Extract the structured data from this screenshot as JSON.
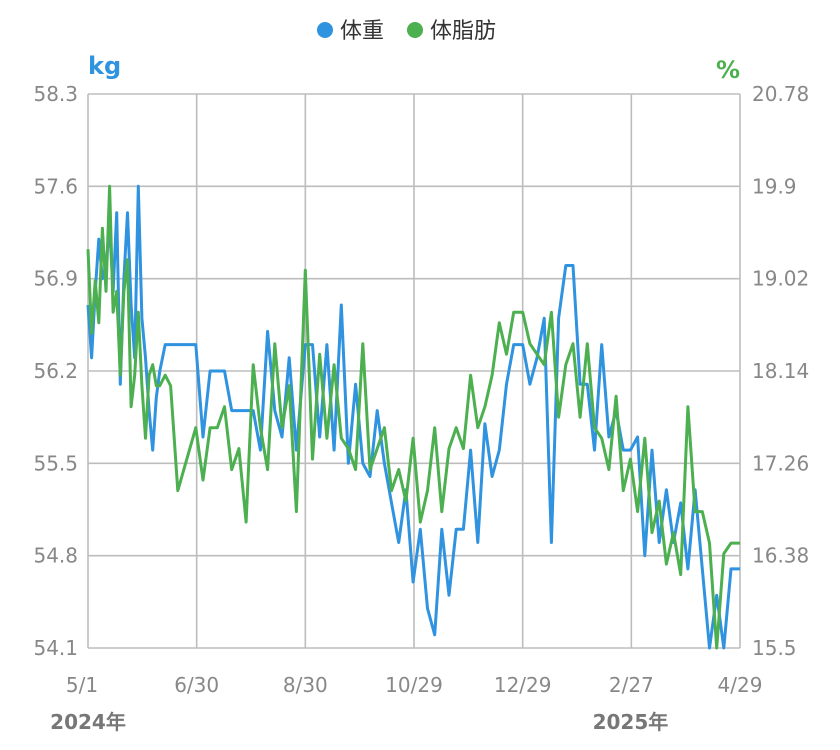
{
  "chart_data": {
    "type": "line",
    "legend": {
      "position": "top-center"
    },
    "grid": true,
    "x_axis": {
      "ticks": [
        "5/1",
        "6/30",
        "8/30",
        "10/29",
        "12/29",
        "2/27",
        "4/29"
      ],
      "years": [
        {
          "label": "2024年",
          "date": "2024-05-01"
        },
        {
          "label": "2025年",
          "date": "2025-02-27"
        }
      ],
      "range": [
        "2024-05-01",
        "2025-04-29"
      ]
    },
    "y_left": {
      "unit": "kg",
      "color": "#2f93e0",
      "ticks": [
        "58.3",
        "57.6",
        "56.9",
        "56.2",
        "55.5",
        "54.8",
        "54.1"
      ],
      "range": [
        54.1,
        58.3
      ]
    },
    "y_right": {
      "unit": "%",
      "color": "#4caf50",
      "ticks": [
        "20.78",
        "19.9",
        "19.02",
        "18.14",
        "17.26",
        "16.38",
        "15.5"
      ],
      "range": [
        15.5,
        20.78
      ]
    },
    "series": [
      {
        "name": "体重",
        "axis": "left",
        "color": "#2f93e0",
        "x": [
          "2024-05-01",
          "2024-05-03",
          "2024-05-05",
          "2024-05-07",
          "2024-05-09",
          "2024-05-11",
          "2024-05-13",
          "2024-05-15",
          "2024-05-17",
          "2024-05-19",
          "2024-05-21",
          "2024-05-23",
          "2024-05-25",
          "2024-05-27",
          "2024-05-29",
          "2024-05-31",
          "2024-06-02",
          "2024-06-04",
          "2024-06-06",
          "2024-06-08",
          "2024-06-10",
          "2024-06-13",
          "2024-06-16",
          "2024-06-20",
          "2024-06-25",
          "2024-06-30",
          "2024-07-04",
          "2024-07-08",
          "2024-07-12",
          "2024-07-16",
          "2024-07-20",
          "2024-07-24",
          "2024-07-28",
          "2024-08-01",
          "2024-08-05",
          "2024-08-09",
          "2024-08-13",
          "2024-08-17",
          "2024-08-21",
          "2024-08-25",
          "2024-08-30",
          "2024-09-03",
          "2024-09-07",
          "2024-09-11",
          "2024-09-15",
          "2024-09-19",
          "2024-09-23",
          "2024-09-27",
          "2024-10-01",
          "2024-10-05",
          "2024-10-09",
          "2024-10-13",
          "2024-10-17",
          "2024-10-21",
          "2024-10-25",
          "2024-10-29",
          "2024-11-02",
          "2024-11-06",
          "2024-11-10",
          "2024-11-14",
          "2024-11-18",
          "2024-11-22",
          "2024-11-26",
          "2024-11-30",
          "2024-12-04",
          "2024-12-08",
          "2024-12-12",
          "2024-12-16",
          "2024-12-20",
          "2024-12-24",
          "2024-12-29",
          "2025-01-02",
          "2025-01-06",
          "2025-01-10",
          "2025-01-14",
          "2025-01-18",
          "2025-01-22",
          "2025-01-26",
          "2025-01-30",
          "2025-02-03",
          "2025-02-07",
          "2025-02-11",
          "2025-02-15",
          "2025-02-19",
          "2025-02-23",
          "2025-02-27",
          "2025-03-03",
          "2025-03-07",
          "2025-03-11",
          "2025-03-15",
          "2025-03-19",
          "2025-03-23",
          "2025-03-27",
          "2025-03-31",
          "2025-04-04",
          "2025-04-08",
          "2025-04-12",
          "2025-04-16",
          "2025-04-20",
          "2025-04-24",
          "2025-04-29"
        ],
        "values": [
          56.7,
          56.3,
          56.8,
          57.2,
          56.9,
          57.0,
          57.3,
          56.8,
          57.4,
          56.1,
          56.9,
          57.4,
          56.7,
          56.3,
          57.6,
          56.6,
          56.3,
          55.9,
          55.6,
          56.0,
          56.2,
          56.4,
          56.4,
          56.4,
          56.4,
          56.4,
          55.7,
          56.2,
          56.2,
          56.2,
          55.9,
          55.9,
          55.9,
          55.9,
          55.6,
          56.5,
          55.9,
          55.7,
          56.3,
          55.6,
          56.4,
          56.4,
          55.7,
          56.4,
          55.6,
          56.7,
          55.5,
          56.1,
          55.5,
          55.4,
          55.9,
          55.5,
          55.2,
          54.9,
          55.3,
          54.6,
          55.0,
          54.4,
          54.2,
          55.0,
          54.5,
          55.0,
          55.0,
          55.6,
          54.9,
          55.8,
          55.4,
          55.6,
          56.1,
          56.4,
          56.4,
          56.1,
          56.3,
          56.6,
          54.9,
          56.6,
          57.0,
          57.0,
          56.1,
          56.1,
          55.6,
          56.4,
          55.7,
          55.9,
          55.6,
          55.6,
          55.7,
          54.8,
          55.6,
          54.9,
          55.3,
          54.9,
          55.2,
          54.7,
          55.3,
          54.7,
          54.1,
          54.5,
          54.1,
          54.7,
          54.7
        ]
      },
      {
        "name": "体脂肪",
        "axis": "right",
        "color": "#4caf50",
        "x": [
          "2024-05-01",
          "2024-05-03",
          "2024-05-05",
          "2024-05-07",
          "2024-05-09",
          "2024-05-11",
          "2024-05-13",
          "2024-05-15",
          "2024-05-17",
          "2024-05-19",
          "2024-05-21",
          "2024-05-23",
          "2024-05-25",
          "2024-05-27",
          "2024-05-29",
          "2024-05-31",
          "2024-06-02",
          "2024-06-04",
          "2024-06-06",
          "2024-06-08",
          "2024-06-10",
          "2024-06-13",
          "2024-06-16",
          "2024-06-20",
          "2024-06-25",
          "2024-06-30",
          "2024-07-04",
          "2024-07-08",
          "2024-07-12",
          "2024-07-16",
          "2024-07-20",
          "2024-07-24",
          "2024-07-28",
          "2024-08-01",
          "2024-08-05",
          "2024-08-09",
          "2024-08-13",
          "2024-08-17",
          "2024-08-21",
          "2024-08-25",
          "2024-08-30",
          "2024-09-03",
          "2024-09-07",
          "2024-09-11",
          "2024-09-15",
          "2024-09-19",
          "2024-09-23",
          "2024-09-27",
          "2024-10-01",
          "2024-10-05",
          "2024-10-09",
          "2024-10-13",
          "2024-10-17",
          "2024-10-21",
          "2024-10-25",
          "2024-10-29",
          "2024-11-02",
          "2024-11-06",
          "2024-11-10",
          "2024-11-14",
          "2024-11-18",
          "2024-11-22",
          "2024-11-26",
          "2024-11-30",
          "2024-12-04",
          "2024-12-08",
          "2024-12-12",
          "2024-12-16",
          "2024-12-20",
          "2024-12-24",
          "2024-12-29",
          "2025-01-02",
          "2025-01-06",
          "2025-01-10",
          "2025-01-14",
          "2025-01-18",
          "2025-01-22",
          "2025-01-26",
          "2025-01-30",
          "2025-02-03",
          "2025-02-07",
          "2025-02-11",
          "2025-02-15",
          "2025-02-19",
          "2025-02-23",
          "2025-02-27",
          "2025-03-03",
          "2025-03-07",
          "2025-03-11",
          "2025-03-15",
          "2025-03-19",
          "2025-03-23",
          "2025-03-27",
          "2025-03-31",
          "2025-04-04",
          "2025-04-08",
          "2025-04-12",
          "2025-04-16",
          "2025-04-20",
          "2025-04-24",
          "2025-04-29"
        ],
        "values": [
          19.3,
          18.5,
          19.0,
          18.6,
          19.5,
          18.9,
          19.9,
          18.7,
          18.9,
          18.1,
          18.9,
          19.2,
          17.8,
          18.1,
          18.7,
          18.0,
          17.5,
          18.1,
          18.2,
          18.0,
          18.0,
          18.1,
          18.0,
          17.0,
          17.3,
          17.6,
          17.1,
          17.6,
          17.6,
          17.8,
          17.2,
          17.4,
          16.7,
          18.2,
          17.6,
          17.2,
          18.4,
          17.6,
          18.0,
          16.8,
          19.1,
          17.3,
          18.3,
          17.5,
          18.2,
          17.5,
          17.4,
          17.2,
          18.4,
          17.2,
          17.4,
          17.6,
          17.0,
          17.2,
          16.9,
          17.5,
          16.7,
          17.0,
          17.6,
          16.8,
          17.4,
          17.6,
          17.4,
          18.1,
          17.6,
          17.8,
          18.1,
          18.6,
          18.3,
          18.7,
          18.7,
          18.4,
          18.3,
          18.2,
          18.7,
          17.7,
          18.2,
          18.4,
          17.7,
          18.4,
          17.6,
          17.5,
          17.2,
          17.9,
          17.0,
          17.3,
          16.8,
          17.5,
          16.6,
          16.9,
          16.3,
          16.6,
          16.2,
          17.8,
          16.8,
          16.8,
          16.5,
          15.5,
          16.4,
          16.5,
          16.5
        ]
      }
    ]
  }
}
